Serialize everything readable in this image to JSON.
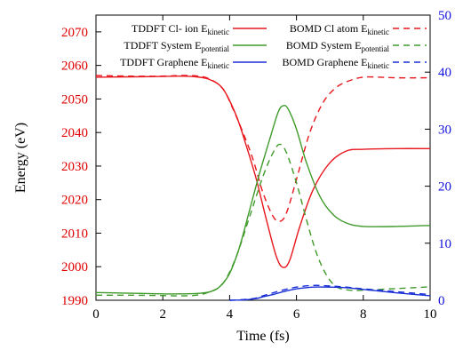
{
  "chart_data": {
    "type": "line",
    "xlabel": "Time (fs)",
    "ylabel": "Energy (eV)",
    "xlim": [
      0,
      10
    ],
    "ylim_left": [
      1990,
      2075
    ],
    "ylim_right": [
      0,
      50
    ],
    "x_ticks": [
      "0",
      "2",
      "4",
      "6",
      "8",
      "10"
    ],
    "y_ticks_left": [
      "1990",
      "2000",
      "2010",
      "2020",
      "2030",
      "2040",
      "2050",
      "2060",
      "2070"
    ],
    "y_ticks_right": [
      "0",
      "10",
      "20",
      "30",
      "40",
      "50"
    ],
    "grid": false,
    "legend_position": "top",
    "colors": {
      "left_axis": "#e00000",
      "right_axis": "#1010e0",
      "green": "#3f9a2a",
      "red": "#e8161d",
      "blue": "#1a2fd6"
    },
    "series": [
      {
        "name_main": "TDDFT Cl- ion E",
        "name_sub": "kinetic",
        "axis": "left",
        "color": "#e8161d",
        "dash": "solid",
        "x": [
          0,
          1,
          2,
          2.5,
          3,
          3.4,
          3.8,
          4.2,
          4.5,
          4.8,
          5.1,
          5.4,
          5.6,
          5.8,
          6.1,
          6.5,
          7,
          7.5,
          8,
          9,
          10
        ],
        "y": [
          2056.5,
          2056.6,
          2056.7,
          2056.8,
          2056.6,
          2055.8,
          2053,
          2045,
          2036,
          2026,
          2014,
          2003,
          1999.8,
          2002,
          2012,
          2023,
          2031,
          2034.5,
          2035,
          2035.2,
          2035.2
        ]
      },
      {
        "name_main": "BOMD Cl atom E",
        "name_sub": "kinetic",
        "axis": "left",
        "color": "#e8161d",
        "dash": "dashed",
        "x": [
          0,
          1,
          2,
          2.5,
          3,
          3.4,
          3.8,
          4.1,
          4.4,
          4.7,
          5,
          5.3,
          5.5,
          5.7,
          6,
          6.4,
          6.8,
          7.2,
          7.6,
          8,
          8.5,
          9,
          10
        ],
        "y": [
          2057,
          2056.8,
          2056.8,
          2057,
          2056.9,
          2056,
          2053,
          2047,
          2040,
          2032,
          2022,
          2015,
          2013.5,
          2016,
          2026,
          2040,
          2049,
          2053.5,
          2055.5,
          2056.5,
          2056.5,
          2056.3,
          2056.3
        ]
      },
      {
        "name_main": "TDDFT System E",
        "name_sub": "potential",
        "axis": "left",
        "color": "#3f9a2a",
        "dash": "solid",
        "x": [
          0,
          1,
          2,
          2.5,
          3,
          3.4,
          3.7,
          4,
          4.3,
          4.6,
          4.9,
          5.2,
          5.45,
          5.6,
          5.75,
          6,
          6.3,
          6.7,
          7.1,
          7.5,
          8,
          9,
          10
        ],
        "y": [
          1992.3,
          1992.1,
          1991.9,
          1991.9,
          1992,
          1992.5,
          1994,
          1998,
          2006,
          2017,
          2028,
          2038,
          2046,
          2048,
          2047,
          2041,
          2031,
          2021,
          2015.5,
          2013,
          2012,
          2012,
          2012.3
        ]
      },
      {
        "name_main": "BOMD System E",
        "name_sub": "potential",
        "axis": "left",
        "color": "#3f9a2a",
        "dash": "dashed",
        "x": [
          0,
          1,
          2,
          2.5,
          3,
          3.4,
          3.8,
          4.2,
          4.6,
          5,
          5.3,
          5.5,
          5.7,
          6,
          6.3,
          6.6,
          6.9,
          7.2,
          7.6,
          8,
          9,
          10
        ],
        "y": [
          1991.5,
          1991.5,
          1991.4,
          1991.3,
          1991.5,
          1992.5,
          1995,
          2003,
          2015,
          2027,
          2034,
          2036.5,
          2034,
          2025,
          2014,
          2004,
          1997.5,
          1994,
          1993,
          1993,
          1993.5,
          1994
        ]
      },
      {
        "name_main": "TDDFT Graphene E",
        "name_sub": "kinetic",
        "axis": "right",
        "color": "#1a2fd6",
        "dash": "solid",
        "x": [
          4,
          4.5,
          4.8,
          5,
          5.3,
          5.6,
          6,
          6.5,
          7,
          7.5,
          8,
          9,
          10
        ],
        "y": [
          0,
          0.1,
          0.3,
          0.6,
          1.0,
          1.5,
          2.0,
          2.3,
          2.3,
          2.2,
          1.9,
          1.3,
          0.8
        ]
      },
      {
        "name_main": "BOMD Graphene E",
        "name_sub": "kinetic",
        "axis": "right",
        "color": "#1a2fd6",
        "dash": "dashed",
        "x": [
          4,
          4.5,
          4.8,
          5,
          5.3,
          5.6,
          6,
          6.5,
          7,
          7.5,
          8,
          9,
          10
        ],
        "y": [
          0,
          0.15,
          0.4,
          0.8,
          1.3,
          1.8,
          2.3,
          2.6,
          2.5,
          2.3,
          2.0,
          1.5,
          1.0
        ]
      }
    ]
  }
}
